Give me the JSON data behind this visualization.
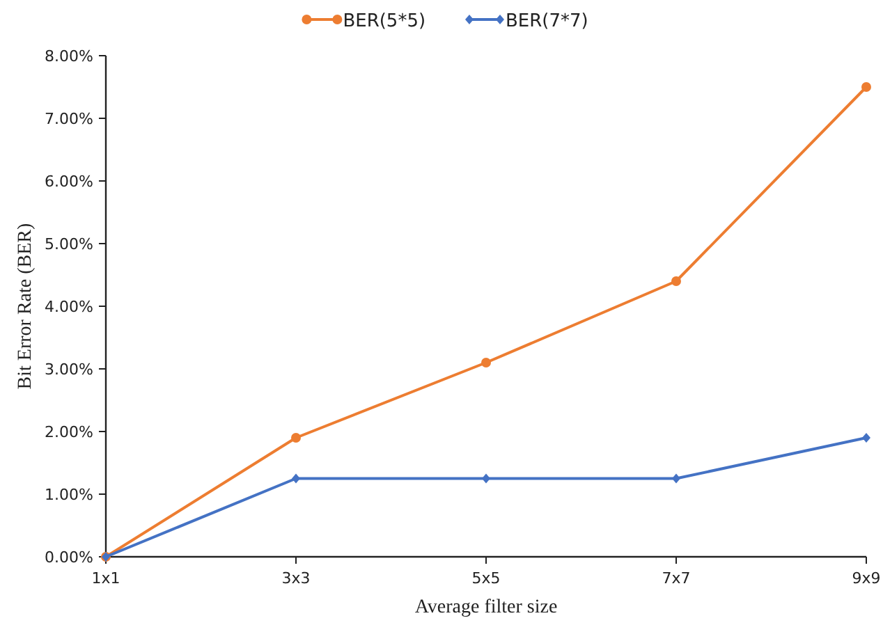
{
  "chart_data": {
    "type": "line",
    "xlabel": "Average filter size",
    "ylabel": "Bit Error Rate (BER)",
    "categories": [
      "1x1",
      "3x3",
      "5x5",
      "7x7",
      "9x9"
    ],
    "series": [
      {
        "name": "BER(5*5)",
        "color": "#ed7d31",
        "marker": "circle",
        "values": [
          0,
          1.9,
          3.1,
          4.4,
          7.5
        ]
      },
      {
        "name": "BER(7*7)",
        "color": "#4472c4",
        "marker": "diamond",
        "values": [
          0,
          1.25,
          1.25,
          1.25,
          1.9
        ]
      }
    ],
    "ylim": [
      0,
      8
    ],
    "yticks": [
      {
        "value": 0,
        "label": "0.00%"
      },
      {
        "value": 1,
        "label": "1.00%"
      },
      {
        "value": 2,
        "label": "2.00%"
      },
      {
        "value": 3,
        "label": "3.00%"
      },
      {
        "value": 4,
        "label": "4.00%"
      },
      {
        "value": 5,
        "label": "5.00%"
      },
      {
        "value": 6,
        "label": "6.00%"
      },
      {
        "value": 7,
        "label": "7.00%"
      },
      {
        "value": 8,
        "label": "8.00%"
      }
    ],
    "grid": false,
    "legend": "top",
    "line_style": "solid"
  }
}
